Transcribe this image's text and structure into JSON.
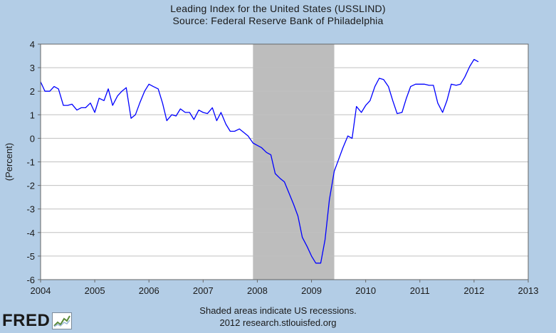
{
  "chart_data": {
    "type": "line",
    "title": "Leading Index for the United States (USSLIND)",
    "subtitle": "Source: Federal Reserve Bank of Philadelphia",
    "ylabel": "(Percent)",
    "xlabel": "",
    "xlim": [
      2004.0,
      2013.0
    ],
    "ylim": [
      -6,
      4
    ],
    "x_ticks": [
      2004,
      2005,
      2006,
      2007,
      2008,
      2009,
      2010,
      2011,
      2012,
      2013
    ],
    "y_ticks": [
      -6,
      -5,
      -4,
      -3,
      -2,
      -1,
      0,
      1,
      2,
      3,
      4
    ],
    "grid": true,
    "legend": "none",
    "recessions": [
      {
        "start": 2007.92,
        "end": 2009.42
      }
    ],
    "series": [
      {
        "color": "#0000ff",
        "x": [
          2004.0,
          2004.08,
          2004.17,
          2004.25,
          2004.33,
          2004.42,
          2004.5,
          2004.58,
          2004.67,
          2004.75,
          2004.83,
          2004.92,
          2005.0,
          2005.08,
          2005.17,
          2005.25,
          2005.33,
          2005.42,
          2005.5,
          2005.58,
          2005.67,
          2005.75,
          2005.83,
          2005.92,
          2006.0,
          2006.08,
          2006.17,
          2006.25,
          2006.33,
          2006.42,
          2006.5,
          2006.58,
          2006.67,
          2006.75,
          2006.83,
          2006.92,
          2007.0,
          2007.08,
          2007.17,
          2007.25,
          2007.33,
          2007.42,
          2007.5,
          2007.58,
          2007.67,
          2007.75,
          2007.83,
          2007.92,
          2008.0,
          2008.08,
          2008.17,
          2008.25,
          2008.33,
          2008.42,
          2008.5,
          2008.58,
          2008.67,
          2008.75,
          2008.83,
          2008.92,
          2009.0,
          2009.08,
          2009.17,
          2009.25,
          2009.33,
          2009.42,
          2009.5,
          2009.58,
          2009.67,
          2009.75,
          2009.83,
          2009.92,
          2010.0,
          2010.08,
          2010.17,
          2010.25,
          2010.33,
          2010.42,
          2010.5,
          2010.58,
          2010.67,
          2010.75,
          2010.83,
          2010.92,
          2011.0,
          2011.08,
          2011.17,
          2011.25,
          2011.33,
          2011.42,
          2011.5,
          2011.58,
          2011.67,
          2011.75,
          2011.83,
          2011.92,
          2012.0,
          2012.08
        ],
        "values": [
          2.4,
          2.0,
          2.0,
          2.2,
          2.1,
          1.4,
          1.4,
          1.45,
          1.2,
          1.3,
          1.3,
          1.5,
          1.1,
          1.7,
          1.6,
          2.1,
          1.4,
          1.8,
          2.0,
          2.15,
          0.85,
          1.0,
          1.5,
          2.0,
          2.3,
          2.2,
          2.1,
          1.5,
          0.75,
          1.0,
          0.95,
          1.25,
          1.1,
          1.1,
          0.8,
          1.2,
          1.1,
          1.05,
          1.3,
          0.75,
          1.1,
          0.6,
          0.3,
          0.3,
          0.4,
          0.25,
          0.1,
          -0.2,
          -0.3,
          -0.4,
          -0.6,
          -0.7,
          -1.5,
          -1.7,
          -1.85,
          -2.3,
          -2.8,
          -3.3,
          -4.2,
          -4.6,
          -5.0,
          -5.3,
          -5.3,
          -4.3,
          -2.6,
          -1.4,
          -0.9,
          -0.4,
          0.1,
          0.0,
          1.35,
          1.1,
          1.4,
          1.6,
          2.2,
          2.55,
          2.5,
          2.2,
          1.6,
          1.05,
          1.1,
          1.7,
          2.2,
          2.3,
          2.3,
          2.3,
          2.25,
          2.25,
          1.5,
          1.1,
          1.6,
          2.3,
          2.25,
          2.3,
          2.6,
          3.05,
          3.35,
          3.25
        ]
      }
    ]
  },
  "footer": {
    "line1": "Shaded areas indicate US recessions.",
    "line2": "2012 research.stlouisfed.org"
  },
  "logo": {
    "text": "FRED",
    "icon": "chart-line-icon"
  }
}
